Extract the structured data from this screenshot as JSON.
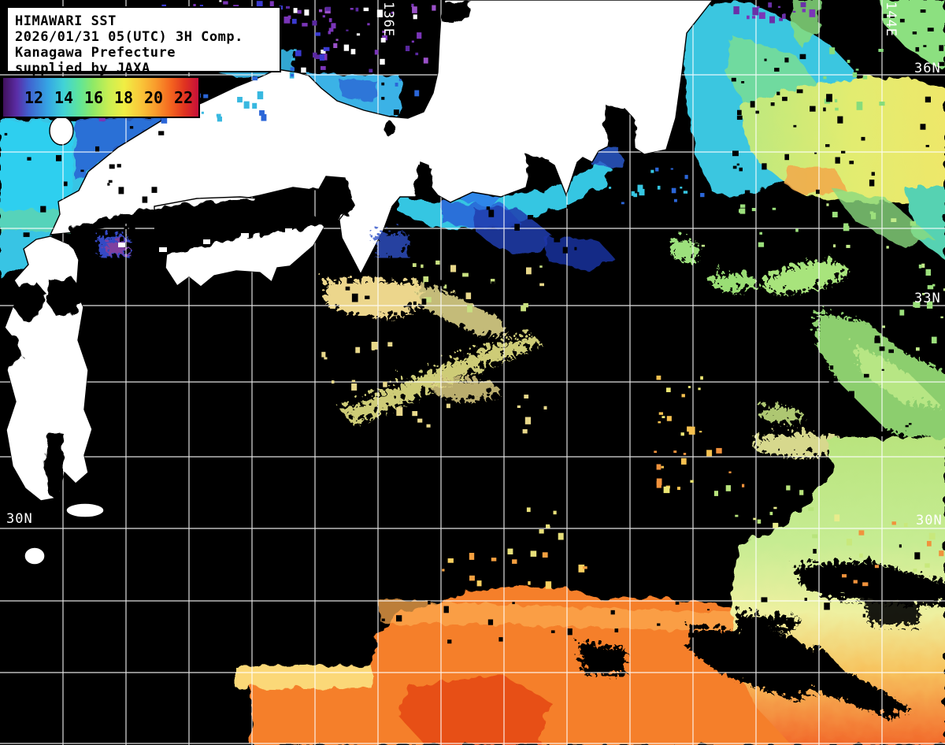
{
  "info_box": {
    "line1": "HIMAWARI SST",
    "line2": "2026/01/31 05(UTC) 3H Comp.",
    "line3": "Kanagawa Prefecture",
    "line4": "supplied by JAXA"
  },
  "colorbar": {
    "ticks": [
      "12",
      "14",
      "16",
      "18",
      "20",
      "22"
    ],
    "gradient_colors": [
      "#40105c",
      "#4061cf",
      "#35a6e4",
      "#41d3d6",
      "#5fe59a",
      "#c9ef52",
      "#f0ee44",
      "#f9c93a",
      "#f99c2c",
      "#f4641f",
      "#c60f3a"
    ]
  },
  "graticule": {
    "lat_labels_right": [
      "36N",
      "33N",
      "30N"
    ],
    "lat_label_left": "30N",
    "lon_labels_top": [
      "136E",
      "144E"
    ]
  },
  "map": {
    "sea_nodata_color": "#000000",
    "land_color": "#ffffff",
    "grid_color": "#ffffff",
    "legend_palette": "SST 10-24 range rainbow"
  }
}
